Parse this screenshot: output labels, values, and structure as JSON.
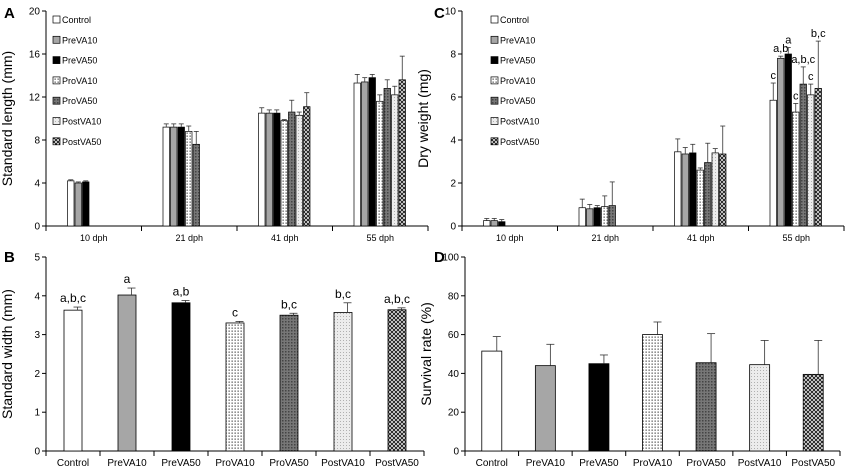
{
  "chart_data": [
    {
      "panel": "A",
      "type": "bar",
      "ylabel": "Standard length (mm)",
      "xlabel": "",
      "ylim": [
        0,
        20
      ],
      "yticks": [
        "0",
        "4",
        "8",
        "12",
        "16",
        "20"
      ],
      "categories": [
        "10 dph",
        "21 dph",
        "41 dph",
        "55 dph"
      ],
      "legend_position": "top-left",
      "series": [
        {
          "name": "Control",
          "pattern": "white",
          "values": [
            4.2,
            9.2,
            10.5,
            13.3
          ],
          "errors": [
            0.1,
            0.3,
            0.5,
            0.8
          ]
        },
        {
          "name": "PreVA10",
          "pattern": "gray",
          "values": [
            4.0,
            9.2,
            10.5,
            13.4
          ],
          "errors": [
            0.1,
            0.3,
            0.3,
            0.4
          ]
        },
        {
          "name": "PreVA50",
          "pattern": "black",
          "values": [
            4.1,
            9.2,
            10.5,
            13.8
          ],
          "errors": [
            0.1,
            0.3,
            0.3,
            0.3
          ]
        },
        {
          "name": "ProVA10",
          "pattern": "dots",
          "values": [
            null,
            8.8,
            9.8,
            11.6
          ],
          "errors": [
            0,
            0.5,
            0.1,
            0.6
          ]
        },
        {
          "name": "ProVA50",
          "pattern": "dgrid",
          "values": [
            null,
            7.6,
            10.6,
            12.8
          ],
          "errors": [
            0,
            1.2,
            1.1,
            0.8
          ]
        },
        {
          "name": "PostVA10",
          "pattern": "light",
          "values": [
            null,
            null,
            10.3,
            12.2
          ],
          "errors": [
            0,
            0,
            0.3,
            0.8
          ]
        },
        {
          "name": "PostVA50",
          "pattern": "check",
          "values": [
            null,
            null,
            11.1,
            13.6
          ],
          "errors": [
            0,
            0,
            1.3,
            2.2
          ]
        }
      ]
    },
    {
      "panel": "C",
      "type": "bar",
      "ylabel": "Dry weight (mg)",
      "xlabel": "",
      "ylim": [
        0,
        10
      ],
      "yticks": [
        "0",
        "2",
        "4",
        "6",
        "8",
        "10"
      ],
      "categories": [
        "10 dph",
        "21 dph",
        "41 dph",
        "55 dph"
      ],
      "legend_position": "top-left",
      "series": [
        {
          "name": "Control",
          "pattern": "white",
          "values": [
            0.25,
            0.85,
            3.45,
            5.85
          ],
          "errors": [
            0.1,
            0.4,
            0.6,
            0.8
          ],
          "labels": [
            "",
            "",
            "",
            "c"
          ]
        },
        {
          "name": "PreVA10",
          "pattern": "gray",
          "values": [
            0.25,
            0.8,
            3.35,
            7.8
          ],
          "errors": [
            0.1,
            0.2,
            0.3,
            0.1
          ],
          "labels": [
            "",
            "",
            "",
            "a,b"
          ]
        },
        {
          "name": "PreVA50",
          "pattern": "black",
          "values": [
            0.2,
            0.85,
            3.4,
            8.0
          ],
          "errors": [
            0.1,
            0.1,
            0.4,
            0.3
          ],
          "labels": [
            "",
            "",
            "",
            "a"
          ]
        },
        {
          "name": "ProVA10",
          "pattern": "dots",
          "values": [
            null,
            0.9,
            2.6,
            5.3
          ],
          "errors": [
            0,
            0.5,
            0.1,
            0.4
          ],
          "labels": [
            "",
            "",
            "",
            "c"
          ]
        },
        {
          "name": "ProVA50",
          "pattern": "dgrid",
          "values": [
            null,
            0.95,
            2.95,
            6.6
          ],
          "errors": [
            0,
            1.1,
            0.9,
            0.8
          ],
          "labels": [
            "",
            "",
            "",
            "a,b,c"
          ]
        },
        {
          "name": "PostVA10",
          "pattern": "light",
          "values": [
            null,
            null,
            3.4,
            6.1
          ],
          "errors": [
            0,
            0,
            0.2,
            0.5
          ],
          "labels": [
            "",
            "",
            "",
            "c"
          ]
        },
        {
          "name": "PostVA50",
          "pattern": "check",
          "values": [
            null,
            null,
            3.35,
            6.4
          ],
          "errors": [
            0,
            0,
            1.3,
            2.2
          ],
          "labels": [
            "",
            "",
            "",
            "b,c"
          ]
        }
      ]
    },
    {
      "panel": "B",
      "type": "bar",
      "ylabel": "Standard width (mm)",
      "xlabel": "",
      "ylim": [
        0,
        5
      ],
      "yticks": [
        "0",
        "1",
        "2",
        "3",
        "4",
        "5"
      ],
      "categories": [
        "Control",
        "PreVA10",
        "PreVA50",
        "ProVA10",
        "ProVA50",
        "PostVA10",
        "PostVA50"
      ],
      "patterns": [
        "white",
        "gray",
        "black",
        "dots",
        "dgrid",
        "light",
        "check"
      ],
      "values": [
        3.63,
        4.02,
        3.82,
        3.3,
        3.5,
        3.57,
        3.64
      ],
      "errors": [
        0.08,
        0.18,
        0.06,
        0.04,
        0.05,
        0.25,
        0.05
      ],
      "labels": [
        "a,b,c",
        "a",
        "a,b",
        "c",
        "b,c",
        "b,c",
        "a,b,c"
      ]
    },
    {
      "panel": "D",
      "type": "bar",
      "ylabel": "Survival rate (%)",
      "xlabel": "",
      "ylim": [
        0,
        100
      ],
      "yticks": [
        "0",
        "20",
        "40",
        "60",
        "80",
        "100"
      ],
      "categories": [
        "Control",
        "PreVA10",
        "PreVA50",
        "ProVA10",
        "ProVA50",
        "PostVA10",
        "PostVA50"
      ],
      "patterns": [
        "white",
        "gray",
        "black",
        "dots",
        "dgrid",
        "light",
        "check"
      ],
      "values": [
        51.5,
        44,
        45,
        60,
        45.5,
        44.5,
        39.5
      ],
      "errors": [
        7.5,
        11,
        4.5,
        6.5,
        15,
        12.5,
        17.5
      ],
      "labels": [
        "",
        "",
        "",
        "",
        "",
        "",
        ""
      ]
    }
  ]
}
